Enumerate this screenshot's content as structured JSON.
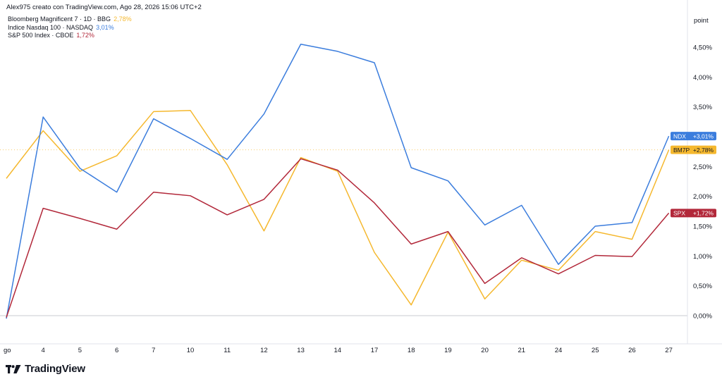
{
  "header": {
    "attribution": "Alex975 creato con TradingView.com, Ago 28, 2026 15:06 UTC+2"
  },
  "legend": [
    {
      "name": "Bloomberg Magnificent 7 · 1D · BBG",
      "value": "2,78%",
      "color": "#f5b82e"
    },
    {
      "name": "Indice Nasdaq 100 · NASDAQ",
      "value": "3,01%",
      "color": "#3b7ddd"
    },
    {
      "name": "S&P 500 Index · CBOE",
      "value": "1,72%",
      "color": "#b2283a"
    }
  ],
  "brand": {
    "name": "TradingView"
  },
  "chart_data": {
    "type": "line",
    "x_label_unit": "point",
    "x": [
      "go",
      "4",
      "5",
      "6",
      "7",
      "10",
      "11",
      "12",
      "13",
      "14",
      "17",
      "18",
      "19",
      "20",
      "21",
      "24",
      "25",
      "26",
      "27"
    ],
    "ylim": [
      -0.3,
      4.9
    ],
    "y_ticks": [
      {
        "value": 0,
        "label": "0,00%"
      },
      {
        "value": 0.5,
        "label": "0,50%"
      },
      {
        "value": 1.0,
        "label": "1,00%"
      },
      {
        "value": 1.5,
        "label": "1,50%"
      },
      {
        "value": 2.0,
        "label": "2,00%"
      },
      {
        "value": 2.5,
        "label": "2,50%"
      },
      {
        "value": 3.5,
        "label": "3,50%"
      },
      {
        "value": 4.0,
        "label": "4,00%"
      },
      {
        "value": 4.5,
        "label": "4,50%"
      }
    ],
    "grid": false,
    "series": [
      {
        "name": "Indice Nasdaq 100 · NASDAQ",
        "tag": "NDX",
        "badge": "+3,01%",
        "color": "#3b7ddd",
        "values": [
          -0.05,
          3.33,
          2.47,
          2.07,
          3.3,
          2.97,
          2.62,
          3.38,
          4.55,
          4.43,
          4.24,
          2.48,
          2.26,
          1.52,
          1.85,
          0.86,
          1.5,
          1.56,
          3.01
        ]
      },
      {
        "name": "Bloomberg Magnificent 7 · 1D · BBG",
        "tag": "BM7P",
        "badge": "+2,78%",
        "color": "#f5b82e",
        "values": [
          2.3,
          3.1,
          2.42,
          2.68,
          3.42,
          3.44,
          2.53,
          1.42,
          2.65,
          2.42,
          1.06,
          0.18,
          1.4,
          0.28,
          0.93,
          0.76,
          1.41,
          1.28,
          2.78
        ]
      },
      {
        "name": "S&P 500 Index · CBOE",
        "tag": "SPX",
        "badge": "+1,72%",
        "color": "#b2283a",
        "values": [
          -0.03,
          1.8,
          1.63,
          1.45,
          2.07,
          2.01,
          1.69,
          1.95,
          2.63,
          2.44,
          1.89,
          1.2,
          1.41,
          0.54,
          0.97,
          0.7,
          1.01,
          0.99,
          1.72
        ]
      }
    ]
  }
}
